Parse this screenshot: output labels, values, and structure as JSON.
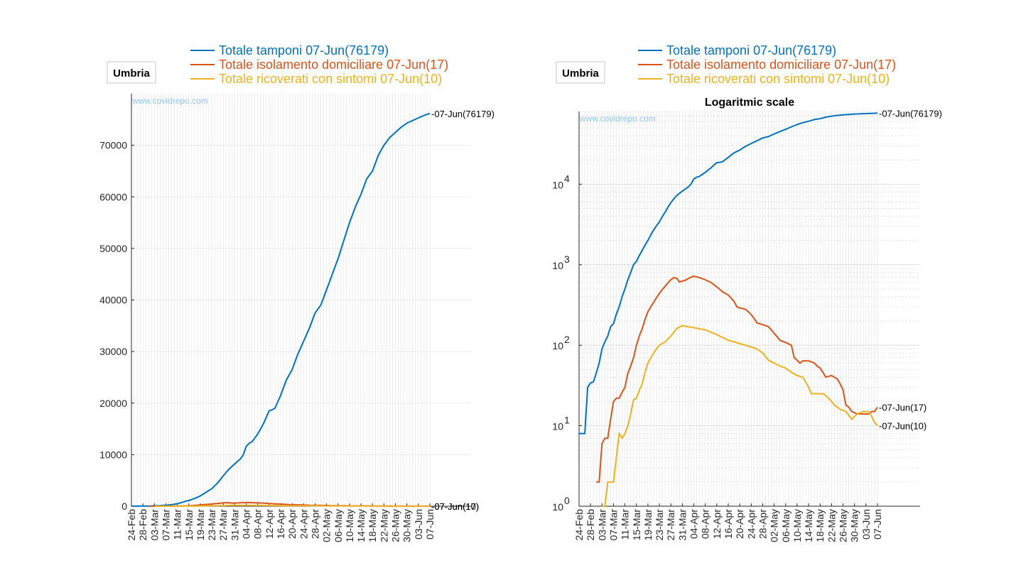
{
  "chart_data": [
    {
      "type": "line",
      "title": "",
      "region_label": "Umbria",
      "watermark": "www.covidrepo.com",
      "xlabel": "",
      "ylabel": "",
      "ylim": [
        0,
        80000
      ],
      "yscale": "linear",
      "yticks": [
        "0",
        "10000",
        "20000",
        "30000",
        "40000",
        "50000",
        "60000",
        "70000"
      ],
      "ytick_values": [
        0,
        10000,
        20000,
        30000,
        40000,
        50000,
        60000,
        70000
      ],
      "grid": true,
      "legend_position": "top",
      "series_refs": [
        "tamponi",
        "isolamento",
        "ricoverati"
      ]
    },
    {
      "type": "line",
      "title": "Logaritmic scale",
      "region_label": "Umbria",
      "watermark": "www.covidrepo.com",
      "xlabel": "",
      "ylabel": "",
      "ylim": [
        1,
        80000
      ],
      "yscale": "log",
      "yticks": [
        "10",
        "10",
        "10",
        "10",
        "10"
      ],
      "ytick_exponents": [
        "0",
        "1",
        "2",
        "3",
        "4"
      ],
      "ytick_values": [
        1,
        10,
        100,
        1000,
        10000
      ],
      "grid": true,
      "legend_position": "top",
      "series_refs": [
        "tamponi",
        "isolamento",
        "ricoverati"
      ]
    }
  ],
  "x_dates": {
    "start": "24-Feb",
    "end": "07-Jun",
    "tick_labels": [
      "24-Feb",
      "28-Feb",
      "03-Mar",
      "07-Mar",
      "11-Mar",
      "15-Mar",
      "19-Mar",
      "23-Mar",
      "27-Mar",
      "31-Mar",
      "04-Apr",
      "08-Apr",
      "12-Apr",
      "16-Apr",
      "20-Apr",
      "24-Apr",
      "28-Apr",
      "02-May",
      "06-May",
      "10-May",
      "14-May",
      "18-May",
      "22-May",
      "26-May",
      "30-May",
      "03-Jun",
      "07-Jun"
    ]
  },
  "series": {
    "tamponi": {
      "name": "Totale tamponi 07-Jun(76179)",
      "end_label": "07-Jun(76179)",
      "color": "#0072bd",
      "keypoints": [
        [
          "24-Feb",
          8
        ],
        [
          "26-Feb",
          8
        ],
        [
          "27-Feb",
          30
        ],
        [
          "28-Feb",
          34
        ],
        [
          "29-Feb",
          35
        ],
        [
          "01-Mar",
          45
        ],
        [
          "02-Mar",
          60
        ],
        [
          "03-Mar",
          90
        ],
        [
          "05-Mar",
          130
        ],
        [
          "06-Mar",
          170
        ],
        [
          "07-Mar",
          185
        ],
        [
          "09-Mar",
          300
        ],
        [
          "11-Mar",
          500
        ],
        [
          "13-Mar",
          800
        ],
        [
          "14-Mar",
          1000
        ],
        [
          "15-Mar",
          1100
        ],
        [
          "17-Mar",
          1500
        ],
        [
          "19-Mar",
          2000
        ],
        [
          "21-Mar",
          2700
        ],
        [
          "23-Mar",
          3400
        ],
        [
          "25-Mar",
          4500
        ],
        [
          "27-Mar",
          5900
        ],
        [
          "29-Mar",
          7200
        ],
        [
          "31-Mar",
          8200
        ],
        [
          "02-Apr",
          9200
        ],
        [
          "03-Apr",
          10000
        ],
        [
          "04-Apr",
          11600
        ],
        [
          "05-Apr",
          12200
        ],
        [
          "06-Apr",
          12500
        ],
        [
          "08-Apr",
          14000
        ],
        [
          "10-Apr",
          16000
        ],
        [
          "12-Apr",
          18500
        ],
        [
          "13-Apr",
          18700
        ],
        [
          "14-Apr",
          19000
        ],
        [
          "16-Apr",
          21500
        ],
        [
          "18-Apr",
          24500
        ],
        [
          "20-Apr",
          26500
        ],
        [
          "22-Apr",
          29500
        ],
        [
          "24-Apr",
          32000
        ],
        [
          "26-Apr",
          34500
        ],
        [
          "28-Apr",
          37500
        ],
        [
          "30-Apr",
          39000
        ],
        [
          "02-May",
          42000
        ],
        [
          "04-May",
          45000
        ],
        [
          "06-May",
          48000
        ],
        [
          "08-May",
          51500
        ],
        [
          "10-May",
          55000
        ],
        [
          "12-May",
          58000
        ],
        [
          "14-May",
          60500
        ],
        [
          "16-May",
          63500
        ],
        [
          "18-May",
          65000
        ],
        [
          "20-May",
          68000
        ],
        [
          "22-May",
          70000
        ],
        [
          "24-May",
          71500
        ],
        [
          "26-May",
          72500
        ],
        [
          "28-May",
          73500
        ],
        [
          "30-May",
          74300
        ],
        [
          "01-Jun",
          74800
        ],
        [
          "03-Jun",
          75300
        ],
        [
          "05-Jun",
          75800
        ],
        [
          "07-Jun",
          76179
        ]
      ]
    },
    "isolamento": {
      "name": "Totale isolamento domiciliare 07-Jun(17)",
      "end_label": "07-Jun(17)",
      "color": "#d95319",
      "keypoints": [
        [
          "01-Mar",
          2
        ],
        [
          "02-Mar",
          2
        ],
        [
          "03-Mar",
          6
        ],
        [
          "04-Mar",
          7
        ],
        [
          "05-Mar",
          7
        ],
        [
          "06-Mar",
          12
        ],
        [
          "07-Mar",
          20
        ],
        [
          "08-Mar",
          22
        ],
        [
          "09-Mar",
          22
        ],
        [
          "11-Mar",
          30
        ],
        [
          "12-Mar",
          45
        ],
        [
          "13-Mar",
          55
        ],
        [
          "14-Mar",
          70
        ],
        [
          "15-Mar",
          100
        ],
        [
          "17-Mar",
          160
        ],
        [
          "19-Mar",
          260
        ],
        [
          "21-Mar",
          340
        ],
        [
          "23-Mar",
          440
        ],
        [
          "25-Mar",
          540
        ],
        [
          "27-Mar",
          650
        ],
        [
          "28-Mar",
          690
        ],
        [
          "29-Mar",
          680
        ],
        [
          "30-Mar",
          610
        ],
        [
          "01-Apr",
          640
        ],
        [
          "03-Apr",
          700
        ],
        [
          "04-Apr",
          720
        ],
        [
          "06-Apr",
          690
        ],
        [
          "08-Apr",
          650
        ],
        [
          "10-Apr",
          600
        ],
        [
          "12-Apr",
          530
        ],
        [
          "14-Apr",
          460
        ],
        [
          "16-Apr",
          420
        ],
        [
          "18-Apr",
          350
        ],
        [
          "19-Apr",
          300
        ],
        [
          "20-Apr",
          290
        ],
        [
          "22-Apr",
          280
        ],
        [
          "24-Apr",
          240
        ],
        [
          "26-Apr",
          190
        ],
        [
          "28-Apr",
          180
        ],
        [
          "30-Apr",
          170
        ],
        [
          "02-May",
          140
        ],
        [
          "04-May",
          115
        ],
        [
          "06-May",
          108
        ],
        [
          "08-May",
          100
        ],
        [
          "09-May",
          70
        ],
        [
          "10-May",
          65
        ],
        [
          "11-May",
          60
        ],
        [
          "12-May",
          64
        ],
        [
          "14-May",
          64
        ],
        [
          "16-May",
          60
        ],
        [
          "17-May",
          55
        ],
        [
          "18-May",
          52
        ],
        [
          "20-May",
          40
        ],
        [
          "22-May",
          42
        ],
        [
          "24-May",
          38
        ],
        [
          "25-May",
          33
        ],
        [
          "26-May",
          28
        ],
        [
          "27-May",
          18
        ],
        [
          "28-May",
          17
        ],
        [
          "29-May",
          15
        ],
        [
          "31-May",
          14
        ],
        [
          "02-Jun",
          14
        ],
        [
          "04-Jun",
          14
        ],
        [
          "05-Jun",
          15
        ],
        [
          "06-Jun",
          15
        ],
        [
          "07-Jun",
          17
        ]
      ]
    },
    "ricoverati": {
      "name": "Totale ricoverati con sintomi 07-Jun(10)",
      "end_label": "07-Jun(10)",
      "color": "#edb120",
      "keypoints": [
        [
          "03-Mar",
          1
        ],
        [
          "04-Mar",
          1
        ],
        [
          "05-Mar",
          2
        ],
        [
          "06-Mar",
          2
        ],
        [
          "07-Mar",
          2
        ],
        [
          "08-Mar",
          4
        ],
        [
          "09-Mar",
          8
        ],
        [
          "10-Mar",
          7
        ],
        [
          "11-Mar",
          8
        ],
        [
          "12-Mar",
          10
        ],
        [
          "13-Mar",
          14
        ],
        [
          "14-Mar",
          21
        ],
        [
          "15-Mar",
          22
        ],
        [
          "17-Mar",
          33
        ],
        [
          "19-Mar",
          60
        ],
        [
          "21-Mar",
          80
        ],
        [
          "23-Mar",
          100
        ],
        [
          "25-Mar",
          110
        ],
        [
          "27-Mar",
          130
        ],
        [
          "29-Mar",
          160
        ],
        [
          "31-Mar",
          175
        ],
        [
          "02-Apr",
          170
        ],
        [
          "04-Apr",
          165
        ],
        [
          "06-Apr",
          160
        ],
        [
          "08-Apr",
          155
        ],
        [
          "10-Apr",
          145
        ],
        [
          "12-Apr",
          135
        ],
        [
          "14-Apr",
          125
        ],
        [
          "16-Apr",
          115
        ],
        [
          "18-Apr",
          110
        ],
        [
          "20-Apr",
          105
        ],
        [
          "22-Apr",
          100
        ],
        [
          "24-Apr",
          95
        ],
        [
          "26-Apr",
          90
        ],
        [
          "28-Apr",
          80
        ],
        [
          "30-Apr",
          65
        ],
        [
          "02-May",
          60
        ],
        [
          "04-May",
          55
        ],
        [
          "06-May",
          52
        ],
        [
          "08-May",
          46
        ],
        [
          "10-May",
          42
        ],
        [
          "12-May",
          40
        ],
        [
          "14-May",
          30
        ],
        [
          "15-May",
          25
        ],
        [
          "17-May",
          25
        ],
        [
          "19-May",
          25
        ],
        [
          "21-May",
          22
        ],
        [
          "23-May",
          18
        ],
        [
          "25-May",
          16
        ],
        [
          "27-May",
          15
        ],
        [
          "29-May",
          12
        ],
        [
          "31-May",
          14
        ],
        [
          "02-Jun",
          15
        ],
        [
          "04-Jun",
          15
        ],
        [
          "05-Jun",
          13
        ],
        [
          "06-Jun",
          11
        ],
        [
          "07-Jun",
          10
        ]
      ]
    }
  }
}
